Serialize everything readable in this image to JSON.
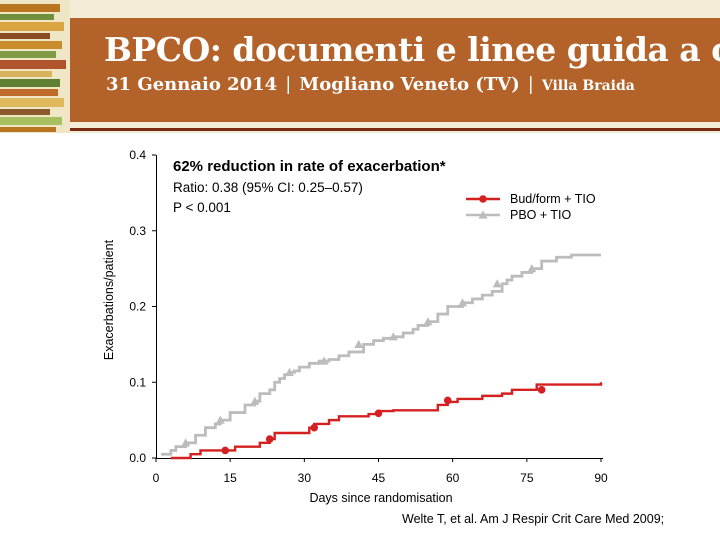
{
  "header": {
    "title": "BPCO: documenti e linee guida a confronto",
    "date": "31 Gennaio 2014",
    "separator": "|",
    "location": "Mogliano Veneto (TV)",
    "venue": "Villa Braida",
    "colors": {
      "band": "#b3632a",
      "background": "#f3ecd6",
      "text": "#ffffff"
    }
  },
  "chart_data": {
    "type": "line",
    "title": "62% reduction in rate of exacerbation*",
    "annotation_lines": [
      "Ratio: 0.38 (95% CI: 0.25–0.57)",
      "P < 0.001"
    ],
    "xlabel": "Days since randomisation",
    "ylabel": "Exacerbations/patient",
    "xlim": [
      0,
      90
    ],
    "ylim": [
      0.0,
      0.4
    ],
    "xticks": [
      0,
      15,
      30,
      45,
      60,
      75,
      90
    ],
    "yticks": [
      0.0,
      0.1,
      0.2,
      0.3,
      0.4
    ],
    "ytick_labels": [
      "0.0",
      "0.1",
      "0.2",
      "0.3",
      "0.4"
    ],
    "legend_position": "top-right",
    "step": true,
    "series": [
      {
        "name": "Bud/form + TIO",
        "color": "#d42020",
        "marker": "circle",
        "x": [
          3,
          6,
          7,
          9,
          14,
          16,
          21,
          23,
          24,
          29,
          31,
          32,
          35,
          37,
          43,
          45,
          48,
          52,
          57,
          59,
          61,
          66,
          70,
          72,
          75,
          77,
          90
        ],
        "y": [
          0.0,
          0.0,
          0.005,
          0.01,
          0.01,
          0.015,
          0.02,
          0.025,
          0.033,
          0.033,
          0.04,
          0.045,
          0.05,
          0.055,
          0.058,
          0.062,
          0.063,
          0.063,
          0.07,
          0.074,
          0.078,
          0.082,
          0.085,
          0.09,
          0.09,
          0.097,
          0.1
        ],
        "markers_x": [
          14,
          23,
          32,
          45,
          59,
          78
        ],
        "markers_y": [
          0.01,
          0.025,
          0.04,
          0.059,
          0.076,
          0.09
        ]
      },
      {
        "name": "PBO + TIO",
        "color": "#bcbcbc",
        "marker": "triangle",
        "x": [
          1,
          3,
          4,
          6,
          8,
          10,
          12,
          13,
          15,
          18,
          20,
          21,
          23,
          24,
          25,
          26,
          27,
          28,
          29,
          31,
          33,
          35,
          37,
          39,
          40,
          42,
          44,
          46,
          48,
          50,
          52,
          53,
          55,
          57,
          59,
          60,
          62,
          64,
          66,
          68,
          70,
          71,
          72,
          74,
          76,
          78,
          81,
          84,
          90
        ],
        "y": [
          0.005,
          0.01,
          0.015,
          0.02,
          0.03,
          0.04,
          0.045,
          0.05,
          0.06,
          0.07,
          0.075,
          0.085,
          0.09,
          0.1,
          0.105,
          0.11,
          0.113,
          0.115,
          0.12,
          0.125,
          0.128,
          0.13,
          0.135,
          0.14,
          0.14,
          0.15,
          0.155,
          0.158,
          0.16,
          0.165,
          0.17,
          0.175,
          0.18,
          0.19,
          0.2,
          0.2,
          0.205,
          0.21,
          0.215,
          0.22,
          0.23,
          0.235,
          0.24,
          0.245,
          0.25,
          0.26,
          0.265,
          0.268,
          0.268
        ],
        "markers_x": [
          6,
          13,
          20,
          27,
          34,
          41,
          48,
          55,
          62,
          69,
          76
        ],
        "markers_y": [
          0.02,
          0.05,
          0.075,
          0.113,
          0.128,
          0.15,
          0.16,
          0.18,
          0.205,
          0.23,
          0.25
        ]
      }
    ]
  },
  "citation": "Welte T, et al. Am J Respir Crit Care Med 2009;"
}
